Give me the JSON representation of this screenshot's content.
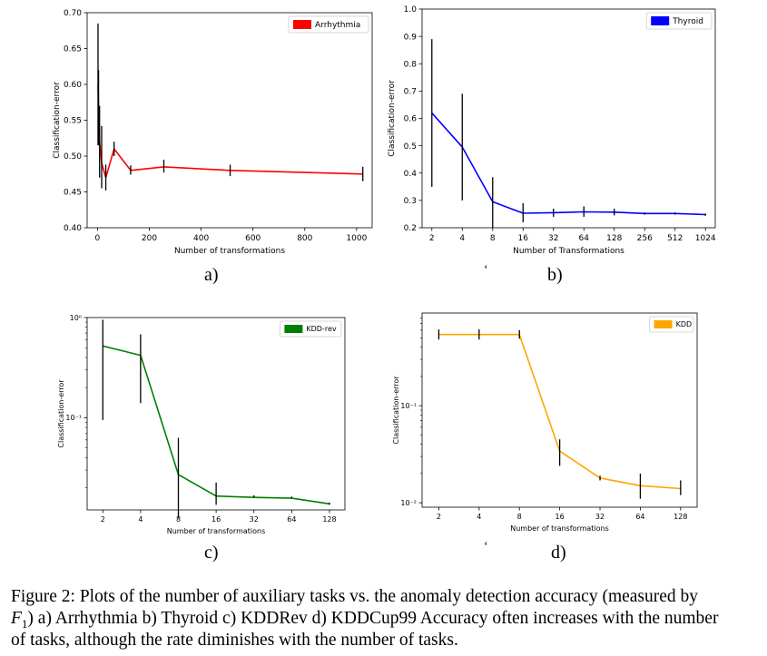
{
  "caption": {
    "line1": "Figure 2: Plots of the number of auxiliary tasks vs. the anomaly detection accuracy (measured by",
    "line2_var": "F",
    "line2_sub": "1",
    "line2_rest": ") a) Arrhythmia b) Thyroid c) KDDRev d) KDDCup99 Accuracy often increases with the number",
    "line3": "of tasks, although the rate diminishes with the number of tasks."
  },
  "panel_labels": [
    "a)",
    "b)",
    "c)",
    "d)"
  ],
  "stray_marks": [
    "‘",
    "‘"
  ],
  "colors": {
    "arrhythmia": "#ff0000",
    "thyroid": "#0000ff",
    "kddrev": "#008000",
    "kdd": "#ffa500",
    "errorbar": "#000000"
  },
  "chart_data": [
    {
      "type": "line",
      "xscale": "linear",
      "yscale": "linear",
      "xlabel": "Number of transformations",
      "ylabel": "Classification-error",
      "xlim": [
        -40,
        1060
      ],
      "ylim": [
        0.4,
        0.7
      ],
      "xticks": [
        0,
        200,
        400,
        600,
        800,
        1000
      ],
      "xticklabels": [
        "0",
        "200",
        "400",
        "600",
        "800",
        "1000"
      ],
      "yticks": [
        0.4,
        0.45,
        0.5,
        0.55,
        0.6,
        0.65,
        0.7
      ],
      "yticklabels": [
        "0.40",
        "0.45",
        "0.50",
        "0.55",
        "0.60",
        "0.65",
        "0.70"
      ],
      "legend_position": "top-right",
      "series": [
        {
          "name": "Arrhythmia",
          "x": [
            2,
            4,
            8,
            16,
            32,
            64,
            128,
            256,
            512,
            1024
          ],
          "y": [
            0.6,
            0.567,
            0.52,
            0.49,
            0.47,
            0.51,
            0.48,
            0.485,
            0.48,
            0.475
          ],
          "yerr_low": [
            0.515,
            0.515,
            0.47,
            0.455,
            0.452,
            0.5,
            0.474,
            0.477,
            0.472,
            0.465
          ],
          "yerr_high": [
            0.685,
            0.62,
            0.57,
            0.542,
            0.488,
            0.52,
            0.487,
            0.495,
            0.488,
            0.485
          ]
        }
      ]
    },
    {
      "type": "line",
      "xscale": "log2",
      "yscale": "linear",
      "xlabel": "Number of Transformations",
      "ylabel": "Classification-error",
      "xlim": [
        1.6,
        1280
      ],
      "ylim": [
        0.2,
        1.0
      ],
      "xticks": [
        2,
        4,
        8,
        16,
        32,
        64,
        128,
        256,
        512,
        1024
      ],
      "xticklabels": [
        "2",
        "4",
        "8",
        "16",
        "32",
        "64",
        "128",
        "256",
        "512",
        "1024"
      ],
      "yticks": [
        0.2,
        0.3,
        0.4,
        0.5,
        0.6,
        0.7,
        0.8,
        0.9,
        1.0
      ],
      "yticklabels": [
        "0.2",
        "0.3",
        "0.4",
        "0.5",
        "0.6",
        "0.7",
        "0.8",
        "0.9",
        "1.0"
      ],
      "legend_position": "top-right",
      "series": [
        {
          "name": "Thyroid",
          "x": [
            2,
            4,
            8,
            16,
            32,
            64,
            128,
            256,
            512,
            1024
          ],
          "y": [
            0.62,
            0.495,
            0.295,
            0.253,
            0.255,
            0.258,
            0.257,
            0.252,
            0.252,
            0.248
          ],
          "yerr_low": [
            0.35,
            0.3,
            0.2,
            0.22,
            0.24,
            0.24,
            0.245,
            0.248,
            0.248,
            0.244
          ],
          "yerr_high": [
            0.89,
            0.69,
            0.385,
            0.29,
            0.27,
            0.278,
            0.27,
            0.256,
            0.256,
            0.252
          ]
        }
      ]
    },
    {
      "type": "line",
      "xscale": "log2",
      "yscale": "log10",
      "xlabel": "Number of transformations",
      "ylabel": "Classification-error",
      "xlim": [
        1.5,
        170
      ],
      "ylim": [
        0.012,
        1.0
      ],
      "xticks": [
        2,
        4,
        8,
        16,
        32,
        64,
        128
      ],
      "xticklabels": [
        "2",
        "4",
        "8",
        "16",
        "32",
        "64",
        "128"
      ],
      "yticks": [
        0.1,
        1.0
      ],
      "yticklabels": [
        "10⁻¹",
        "10⁰"
      ],
      "legend_position": "top-right",
      "series": [
        {
          "name": "KDD-rev",
          "x": [
            2,
            4,
            8,
            16,
            32,
            64,
            128
          ],
          "y": [
            0.52,
            0.42,
            0.027,
            0.0165,
            0.016,
            0.0157,
            0.0138
          ],
          "yerr_low": [
            0.095,
            0.14,
            0.01,
            0.0135,
            0.016,
            0.0157,
            0.0135
          ],
          "yerr_high": [
            0.95,
            0.68,
            0.063,
            0.0225,
            0.0168,
            0.0163,
            0.0142
          ]
        }
      ]
    },
    {
      "type": "line",
      "xscale": "log2",
      "yscale": "log10",
      "xlabel": "Number of transformations",
      "ylabel": "Classification-error",
      "xlim": [
        1.5,
        170
      ],
      "ylim": [
        0.009,
        0.9
      ],
      "xticks": [
        2,
        4,
        8,
        16,
        32,
        64,
        128
      ],
      "xticklabels": [
        "2",
        "4",
        "8",
        "16",
        "32",
        "64",
        "128"
      ],
      "yticks": [
        0.01,
        0.1
      ],
      "yticklabels": [
        "10⁻²",
        "10⁻¹"
      ],
      "legend_position": "top-right",
      "series": [
        {
          "name": "KDD",
          "x": [
            2,
            4,
            8,
            16,
            32,
            64,
            128
          ],
          "y": [
            0.54,
            0.54,
            0.54,
            0.034,
            0.018,
            0.015,
            0.014
          ],
          "yerr_low": [
            0.48,
            0.48,
            0.49,
            0.024,
            0.017,
            0.011,
            0.012
          ],
          "yerr_high": [
            0.61,
            0.61,
            0.6,
            0.045,
            0.019,
            0.02,
            0.017
          ]
        }
      ]
    }
  ]
}
